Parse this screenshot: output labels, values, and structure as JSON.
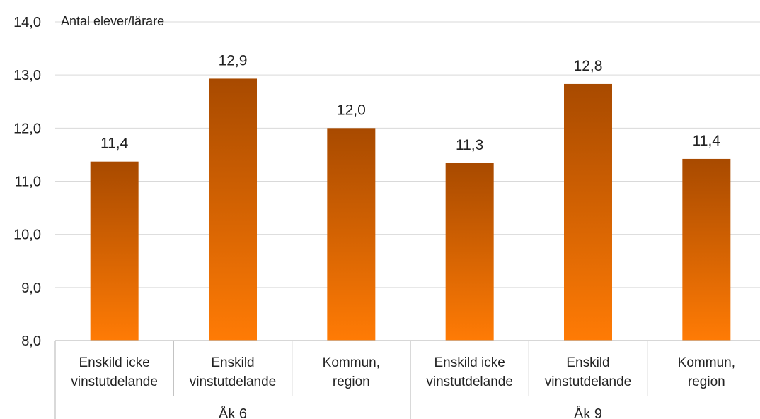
{
  "chart_data": {
    "type": "bar",
    "ylabel": "Antal elever/lärare",
    "ylim": [
      8.0,
      14.0
    ],
    "yticks": [
      "8,0",
      "9,0",
      "10,0",
      "11,0",
      "12,0",
      "13,0",
      "14,0"
    ],
    "grid": true,
    "groups": [
      "Åk 6",
      "Åk 9"
    ],
    "categories": [
      [
        "Enskild icke",
        "vinstutdelande"
      ],
      [
        "Enskild",
        "vinstutdelande"
      ],
      [
        "Kommun,",
        "region"
      ],
      [
        "Enskild icke",
        "vinstutdelande"
      ],
      [
        "Enskild",
        "vinstutdelande"
      ],
      [
        "Kommun,",
        "region"
      ]
    ],
    "values": [
      11.37,
      12.93,
      12.0,
      11.34,
      12.83,
      11.42
    ],
    "data_labels": [
      "11,4",
      "12,9",
      "12,0",
      "11,3",
      "12,8",
      "11,4"
    ],
    "colors": {
      "bar_top": "#A84A00",
      "bar_bottom": "#FF7B05",
      "grid": "#D9D9D9",
      "axis": "#BFBFBF"
    }
  }
}
